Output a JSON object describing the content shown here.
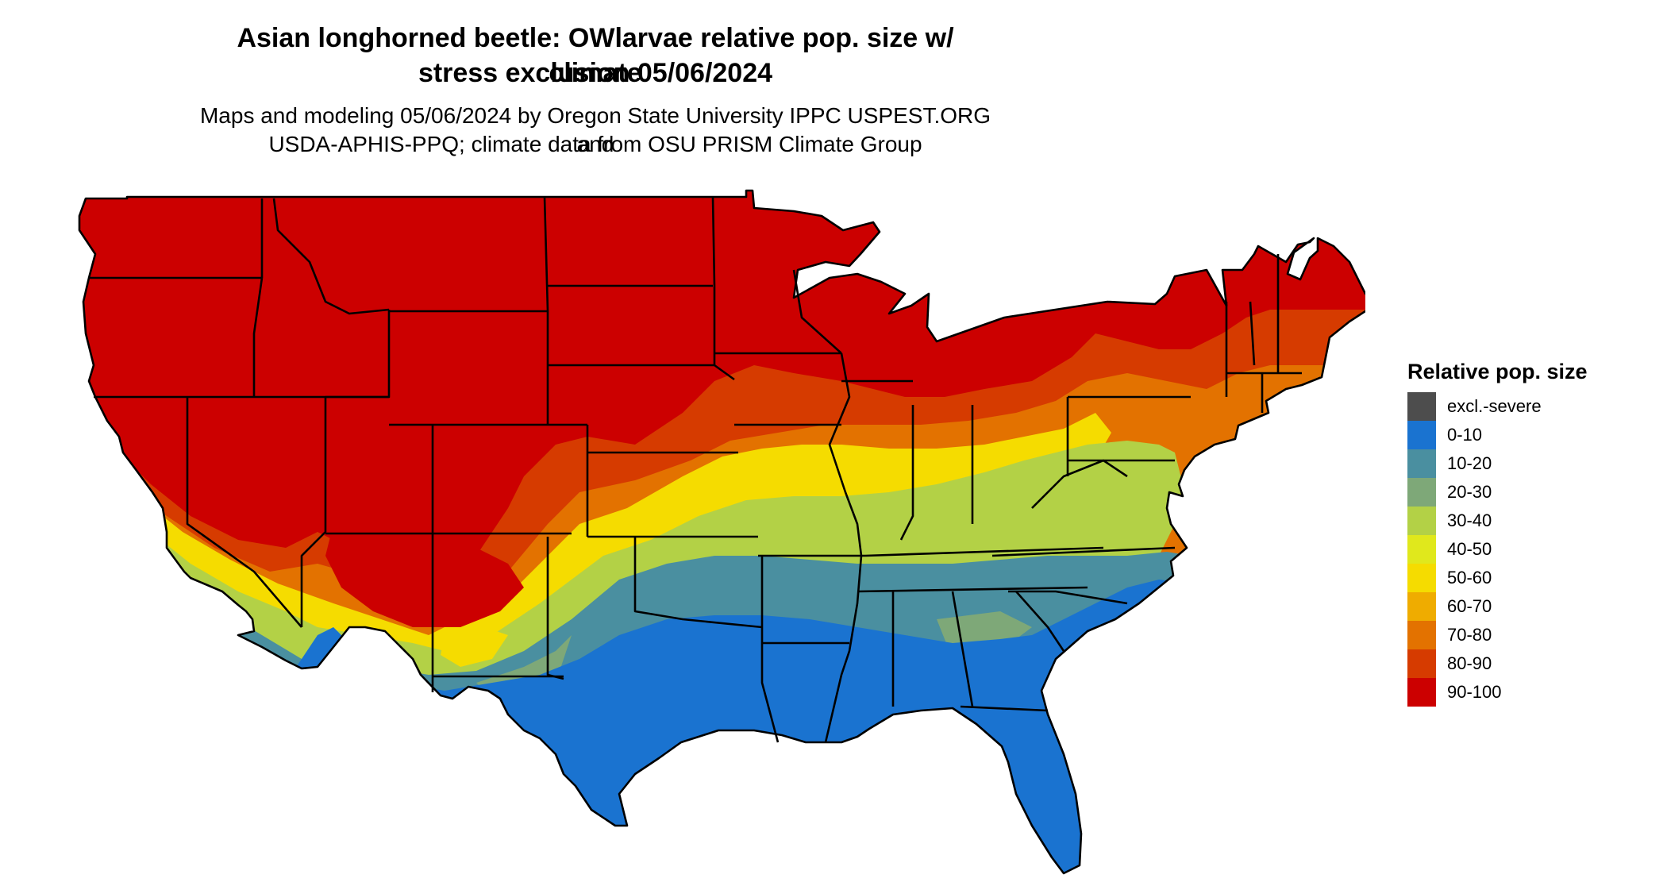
{
  "title": {
    "line1": "Asian longhorned beetle: OWlarvae relative pop. size w/ climate",
    "line2": "stress exclusion 05/06/2024"
  },
  "subtitle": {
    "line1": "Maps and modeling 05/06/2024 by Oregon State University IPPC USPEST.ORG and",
    "line2": "USDA-APHIS-PPQ; climate data from OSU PRISM Climate Group"
  },
  "legend": {
    "title": "Relative pop. size",
    "items": [
      {
        "label": "excl.-severe",
        "color": "#4d4d4d"
      },
      {
        "label": "0-10",
        "color": "#1a73d0"
      },
      {
        "label": "10-20",
        "color": "#4a8fa0"
      },
      {
        "label": "20-30",
        "color": "#7ea878"
      },
      {
        "label": "30-40",
        "color": "#b3d146"
      },
      {
        "label": "40-50",
        "color": "#e0e81c"
      },
      {
        "label": "50-60",
        "color": "#f5dc00"
      },
      {
        "label": "60-70",
        "color": "#efac00"
      },
      {
        "label": "70-80",
        "color": "#e37200"
      },
      {
        "label": "80-90",
        "color": "#d63b00"
      },
      {
        "label": "90-100",
        "color": "#cc0000"
      }
    ]
  },
  "map": {
    "region": "contiguous-united-states",
    "state_border_color": "#000000"
  }
}
